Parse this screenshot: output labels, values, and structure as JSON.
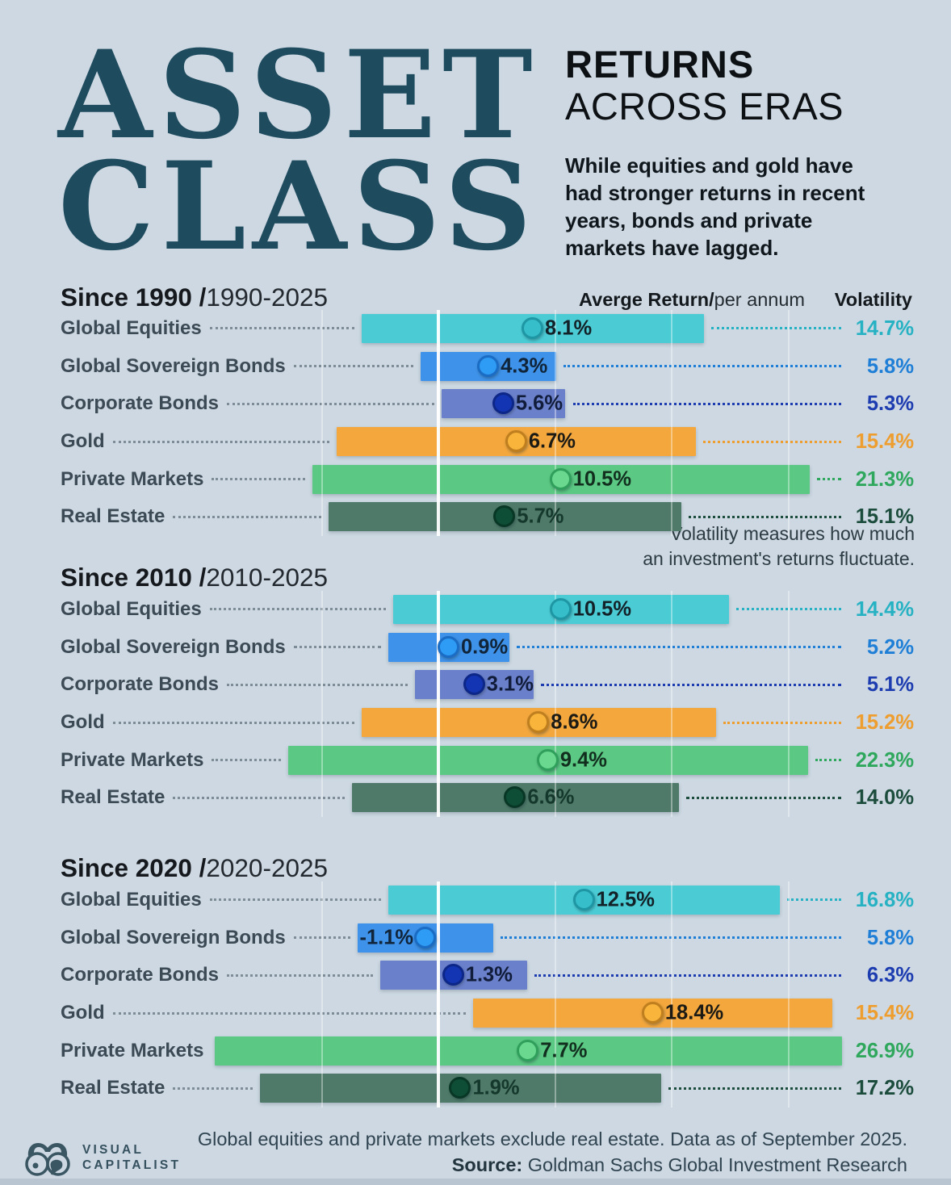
{
  "header": {
    "title_line1": "ASSET",
    "title_line2": "CLASS",
    "subtitle_line1": "RETURNS",
    "subtitle_line2": "ACROSS ERAS",
    "description": "While equities and gold have had stronger returns in recent years, bonds and private markets have lagged."
  },
  "columns": {
    "average_return_bold": "Averge Return/",
    "average_return_light": "per annum",
    "volatility": "Volatility"
  },
  "note": {
    "line1": "Volatility measures how much",
    "line2": "an investment's returns fluctuate."
  },
  "footer": {
    "footnote": "Global equities and private markets exclude real estate. Data as of September 2025.",
    "source_label": "Source:",
    "source_text": " Goldman Sachs Global Investment Research",
    "logo_line1": "VISUAL",
    "logo_line2": "CAPITALIST"
  },
  "assets": [
    {
      "name": "Global Equities",
      "bar_color": "#4bccd5",
      "dot_fill": "#36bfca",
      "dot_ring": "#1f96a4",
      "value_color": "#132228",
      "vol_color": "#27b2c3"
    },
    {
      "name": "Global Sovereign Bonds",
      "bar_color": "#3e92e9",
      "dot_fill": "#2e9cf4",
      "dot_ring": "#1a6cc4",
      "value_color": "#10243a",
      "vol_color": "#1f7fd6"
    },
    {
      "name": "Corporate Bonds",
      "bar_color": "#6b80cb",
      "dot_fill": "#1335b4",
      "dot_ring": "#0d2788",
      "value_color": "#101c3a",
      "vol_color": "#1d3cb0"
    },
    {
      "name": "Gold",
      "bar_color": "#f3a73d",
      "dot_fill": "#f8b43b",
      "dot_ring": "#c07f1e",
      "value_color": "#1c1a14",
      "vol_color": "#ee9d2f"
    },
    {
      "name": "Private Markets",
      "bar_color": "#5bc983",
      "dot_fill": "#6ad98f",
      "dot_ring": "#2f9f5b",
      "value_color": "#112e1e",
      "vol_color": "#2fa85e"
    },
    {
      "name": "Real Estate",
      "bar_color": "#4f7a69",
      "dot_fill": "#0e4e37",
      "dot_ring": "#093726",
      "value_color": "#15382c",
      "vol_color": "#1c4c3c"
    }
  ],
  "chart_data": [
    {
      "type": "bar",
      "title": "Since 1990",
      "period_label": "1990-2025",
      "categories": [
        "Global Equities",
        "Global Sovereign Bonds",
        "Corporate Bonds",
        "Gold",
        "Private Markets",
        "Real Estate"
      ],
      "series": [
        {
          "name": "Average Return (% per annum)",
          "values": [
            8.1,
            4.3,
            5.6,
            6.7,
            10.5,
            5.7
          ]
        },
        {
          "name": "Volatility (%)",
          "values": [
            14.7,
            5.8,
            5.3,
            15.4,
            21.3,
            15.1
          ]
        }
      ],
      "encoding": "horizontal bar spans return minus volatility to return plus volatility; dot marks average return",
      "xlim": [
        -22,
        35
      ],
      "grid": true,
      "legend_position": "none"
    },
    {
      "type": "bar",
      "title": "Since 2010",
      "period_label": "2010-2025",
      "categories": [
        "Global Equities",
        "Global Sovereign Bonds",
        "Corporate Bonds",
        "Gold",
        "Private Markets",
        "Real Estate"
      ],
      "series": [
        {
          "name": "Average Return (% per annum)",
          "values": [
            10.5,
            0.9,
            3.1,
            8.6,
            9.4,
            6.6
          ]
        },
        {
          "name": "Volatility (%)",
          "values": [
            14.4,
            5.2,
            5.1,
            15.2,
            22.3,
            14.0
          ]
        }
      ],
      "encoding": "horizontal bar spans return minus volatility to return plus volatility; dot marks average return",
      "xlim": [
        -22,
        35
      ],
      "grid": true,
      "legend_position": "none"
    },
    {
      "type": "bar",
      "title": "Since 2020",
      "period_label": "2020-2025",
      "categories": [
        "Global Equities",
        "Global Sovereign Bonds",
        "Corporate Bonds",
        "Gold",
        "Private Markets",
        "Real Estate"
      ],
      "series": [
        {
          "name": "Average Return (% per annum)",
          "values": [
            12.5,
            -1.1,
            1.3,
            18.4,
            7.7,
            1.9
          ]
        },
        {
          "name": "Volatility (%)",
          "values": [
            16.8,
            5.8,
            6.3,
            15.4,
            26.9,
            17.2
          ]
        }
      ],
      "encoding": "horizontal bar spans return minus volatility to return plus volatility; dot marks average return",
      "xlim": [
        -22,
        35
      ],
      "grid": true,
      "legend_position": "none"
    }
  ]
}
